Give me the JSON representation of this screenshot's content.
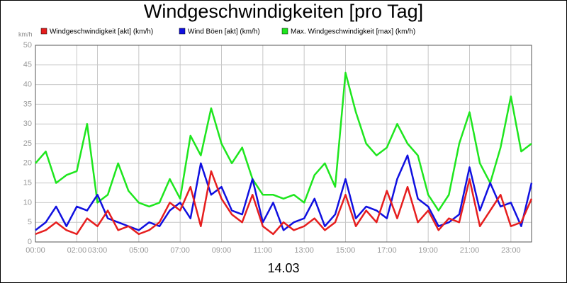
{
  "chart_data": {
    "type": "line",
    "title": "Windgeschwindigkeiten [pro Tag]",
    "y_unit_label": "km/h",
    "x_axis_label": "14.03",
    "x": [
      0,
      0.5,
      1,
      1.5,
      2,
      2.5,
      3,
      3.5,
      4,
      4.5,
      5,
      5.5,
      6,
      6.5,
      7,
      7.5,
      8,
      8.5,
      9,
      9.5,
      10,
      10.5,
      11,
      11.5,
      12,
      12.5,
      13,
      13.5,
      14,
      14.5,
      15,
      15.5,
      16,
      16.5,
      17,
      17.5,
      18,
      18.5,
      19,
      19.5,
      20,
      20.5,
      21,
      21.5,
      22,
      22.5,
      23,
      23.5,
      24
    ],
    "xlim": [
      0,
      24
    ],
    "xticks": [
      {
        "value": 0,
        "label": "00:00"
      },
      {
        "value": 2,
        "label": "02:00"
      },
      {
        "value": 3,
        "label": "03:00"
      },
      {
        "value": 5,
        "label": "05:00"
      },
      {
        "value": 7,
        "label": "07:00"
      },
      {
        "value": 9,
        "label": "09:00"
      },
      {
        "value": 11,
        "label": "11:00"
      },
      {
        "value": 13,
        "label": "13:00"
      },
      {
        "value": 15,
        "label": "15:00"
      },
      {
        "value": 17,
        "label": "17:00"
      },
      {
        "value": 19,
        "label": "19:00"
      },
      {
        "value": 21,
        "label": "21:00"
      },
      {
        "value": 23,
        "label": "23:00"
      }
    ],
    "ylim": [
      0,
      50
    ],
    "yticks": [
      0,
      5,
      10,
      15,
      20,
      25,
      30,
      35,
      40,
      45,
      50
    ],
    "grid": true,
    "series": [
      {
        "name": "Windgeschwindigkeit [akt] (km/h)",
        "color": "#e61e1e",
        "values": [
          2,
          3,
          5,
          3,
          2,
          6,
          4,
          8,
          3,
          4,
          2,
          3,
          5,
          10,
          8,
          14,
          4,
          18,
          11,
          7,
          5,
          12,
          4,
          2,
          5,
          3,
          4,
          6,
          3,
          5,
          12,
          4,
          8,
          5,
          13,
          6,
          14,
          5,
          8,
          3,
          6,
          5,
          16,
          4,
          8,
          12,
          4,
          5,
          11
        ]
      },
      {
        "name": "Wind Böen [akt] (km/h)",
        "color": "#1010e0",
        "values": [
          3,
          5,
          9,
          4,
          9,
          8,
          12,
          6,
          5,
          4,
          3,
          5,
          4,
          8,
          10,
          6,
          20,
          12,
          14,
          8,
          7,
          16,
          5,
          10,
          3,
          5,
          6,
          11,
          4,
          7,
          16,
          6,
          9,
          8,
          6,
          16,
          22,
          11,
          9,
          4,
          5,
          7,
          19,
          8,
          15,
          9,
          10,
          4,
          15
        ]
      },
      {
        "name": "Max. Windgeschwindigkeit [max] (km/h)",
        "color": "#1ee61e",
        "values": [
          20,
          23,
          15,
          17,
          18,
          30,
          10,
          12,
          20,
          13,
          10,
          9,
          10,
          16,
          11,
          27,
          22,
          34,
          25,
          20,
          24,
          16,
          12,
          12,
          11,
          12,
          10,
          17,
          20,
          14,
          43,
          33,
          25,
          22,
          24,
          30,
          25,
          22,
          12,
          8,
          12,
          25,
          33,
          20,
          15,
          24,
          37,
          23,
          25
        ]
      }
    ]
  }
}
